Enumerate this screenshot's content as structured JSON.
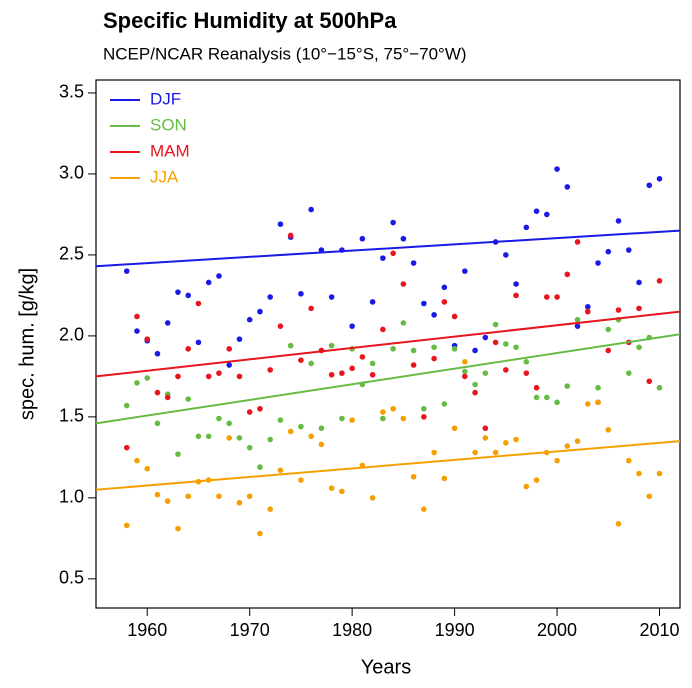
{
  "chart_data": {
    "type": "scatter",
    "title": "Specific Humidity at 500hPa",
    "subtitle": "NCEP/NCAR Reanalysis (10°−15°S, 75°−70°W)",
    "x_label": "Years",
    "y_label": "spec. hum. [g/kg]",
    "legend": "top-left",
    "x": [
      1958,
      1959,
      1960,
      1961,
      1962,
      1963,
      1964,
      1965,
      1966,
      1967,
      1968,
      1969,
      1970,
      1971,
      1972,
      1973,
      1974,
      1975,
      1976,
      1977,
      1978,
      1979,
      1980,
      1981,
      1982,
      1983,
      1984,
      1985,
      1986,
      1987,
      1988,
      1989,
      1990,
      1991,
      1992,
      1993,
      1994,
      1995,
      1996,
      1997,
      1998,
      1999,
      2000,
      2001,
      2002,
      2003,
      2004,
      2005,
      2006,
      2007,
      2008,
      2009,
      2010
    ],
    "xlim": [
      1955,
      2012
    ],
    "xticks": [
      1960,
      1970,
      1980,
      1990,
      2000,
      2010
    ],
    "ylim": [
      0.32,
      3.58
    ],
    "yticks": [
      0.5,
      {
        "value": 1.0,
        "label": "1.0"
      },
      1.5,
      {
        "value": 2.0,
        "label": "2.0"
      },
      2.5,
      {
        "value": 3.0,
        "label": "3.0"
      },
      3.5
    ],
    "series": [
      {
        "name": "DJF",
        "color": "#1a1ae6",
        "trend": [
          2.43,
          2.65
        ],
        "values": [
          2.4,
          2.03,
          1.97,
          1.89,
          2.08,
          2.27,
          2.25,
          1.96,
          2.33,
          2.37,
          1.82,
          1.98,
          2.1,
          2.15,
          2.24,
          2.69,
          2.61,
          2.26,
          2.78,
          2.53,
          2.24,
          2.53,
          2.06,
          2.6,
          2.21,
          2.48,
          2.7,
          2.6,
          2.45,
          2.2,
          2.13,
          2.3,
          1.94,
          2.4,
          1.91,
          1.99,
          2.58,
          2.5,
          2.32,
          2.67,
          2.77,
          2.75,
          3.03,
          2.92,
          2.06,
          2.18,
          2.45,
          2.52,
          2.71,
          2.53,
          2.33,
          2.93,
          2.97
        ]
      },
      {
        "name": "SON",
        "color": "#66bb44",
        "trend": [
          1.46,
          2.01
        ],
        "values": [
          1.57,
          1.71,
          1.74,
          1.46,
          1.64,
          1.27,
          1.61,
          1.38,
          1.38,
          1.49,
          1.46,
          1.37,
          1.31,
          1.19,
          1.36,
          1.48,
          1.94,
          1.44,
          1.83,
          1.43,
          1.94,
          1.49,
          1.92,
          1.7,
          1.83,
          1.49,
          1.92,
          2.08,
          1.91,
          1.55,
          1.93,
          1.58,
          1.92,
          1.78,
          1.7,
          1.77,
          2.07,
          1.95,
          1.93,
          1.84,
          1.62,
          1.62,
          1.59,
          1.69,
          2.1,
          2.15,
          1.68,
          2.04,
          2.1,
          1.77,
          1.93,
          1.99,
          1.68
        ]
      },
      {
        "name": "MAM",
        "color": "#e8141e",
        "trend": [
          1.75,
          2.15
        ],
        "values": [
          1.31,
          2.12,
          1.98,
          1.65,
          1.62,
          1.75,
          1.92,
          2.2,
          1.75,
          1.77,
          1.92,
          1.75,
          1.53,
          1.55,
          1.79,
          2.06,
          2.62,
          1.85,
          2.17,
          1.91,
          1.76,
          1.77,
          1.8,
          1.87,
          1.76,
          2.04,
          2.51,
          2.32,
          1.82,
          1.5,
          1.86,
          2.21,
          2.12,
          1.75,
          1.65,
          1.43,
          1.96,
          1.79,
          2.25,
          1.77,
          1.68,
          2.24,
          2.24,
          2.38,
          2.58,
          2.15,
          1.59,
          1.91,
          2.16,
          1.96,
          2.17,
          1.72,
          2.34
        ]
      },
      {
        "name": "JJA",
        "color": "#f5a000",
        "trend": [
          1.05,
          1.35
        ],
        "values": [
          0.83,
          1.23,
          1.18,
          1.02,
          0.98,
          0.81,
          1.01,
          1.1,
          1.11,
          1.01,
          1.37,
          0.97,
          1.01,
          0.78,
          0.93,
          1.17,
          1.41,
          1.11,
          1.38,
          1.33,
          1.06,
          1.04,
          1.48,
          1.2,
          1.0,
          1.53,
          1.55,
          1.49,
          1.13,
          0.93,
          1.28,
          1.12,
          1.43,
          1.84,
          1.28,
          1.37,
          1.28,
          1.34,
          1.36,
          1.07,
          1.11,
          1.28,
          1.23,
          1.32,
          1.35,
          1.58,
          1.59,
          1.42,
          0.84,
          1.23,
          1.15,
          1.01,
          1.15
        ]
      }
    ]
  }
}
